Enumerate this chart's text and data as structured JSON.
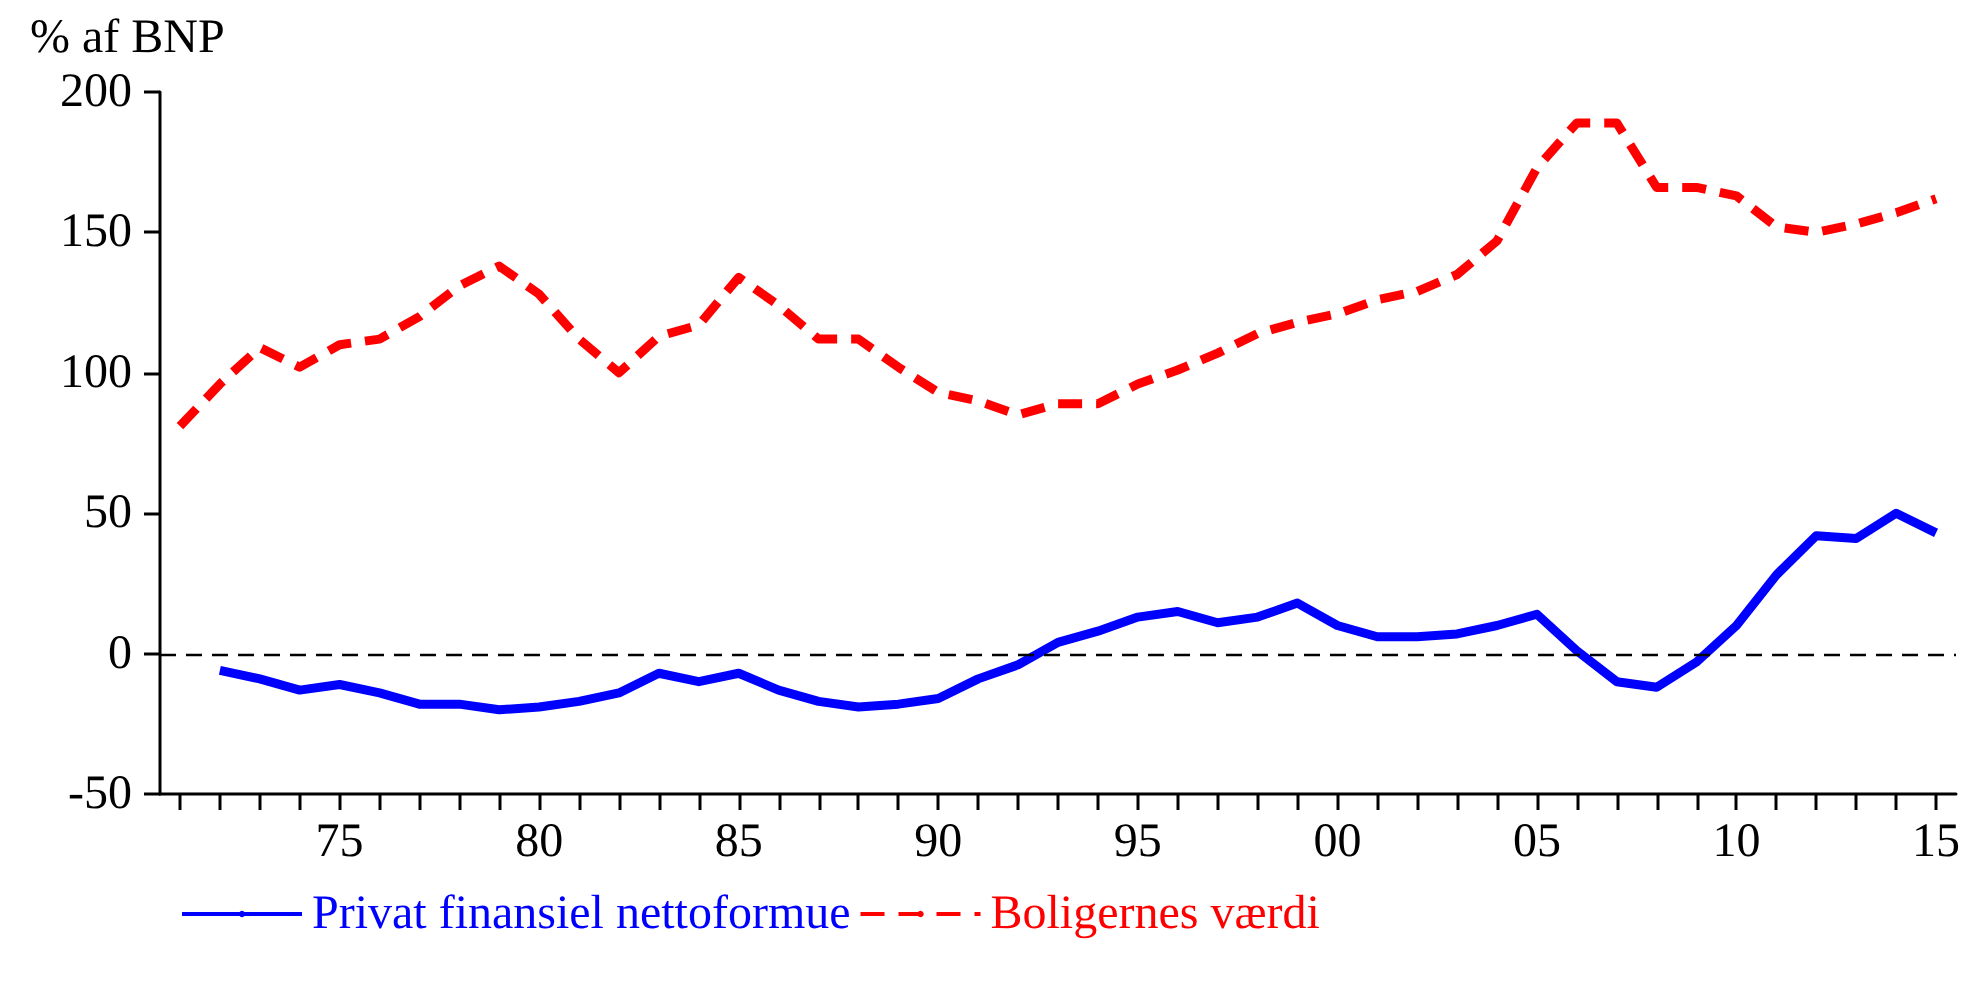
{
  "chart_data": {
    "type": "line",
    "ylabel": "% af BNP",
    "x": [
      1971,
      1972,
      1973,
      1974,
      1975,
      1976,
      1977,
      1978,
      1979,
      1980,
      1981,
      1982,
      1983,
      1984,
      1985,
      1986,
      1987,
      1988,
      1989,
      1990,
      1991,
      1992,
      1993,
      1994,
      1995,
      1996,
      1997,
      1998,
      1999,
      2000,
      2001,
      2002,
      2003,
      2004,
      2005,
      2006,
      2007,
      2008,
      2009,
      2010,
      2011,
      2012,
      2013,
      2014,
      2015
    ],
    "series": [
      {
        "name": "Privat finansiel nettoformue",
        "color": "#0000ff",
        "line_style": "solid",
        "values": [
          null,
          -6,
          -9,
          -13,
          -11,
          -14,
          -18,
          -18,
          -20,
          -19,
          -17,
          -14,
          -7,
          -10,
          -7,
          -13,
          -17,
          -19,
          -18,
          -16,
          -9,
          -4,
          4,
          8,
          13,
          15,
          11,
          13,
          18,
          10,
          6,
          6,
          7,
          10,
          14,
          1,
          -10,
          -12,
          -3,
          10,
          28,
          42,
          41,
          50,
          43
        ]
      },
      {
        "name": "Boligernes værdi",
        "color": "#ff0000",
        "line_style": "dashed",
        "values": [
          81,
          96,
          109,
          102,
          110,
          112,
          120,
          131,
          138,
          128,
          112,
          100,
          113,
          117,
          134,
          124,
          112,
          112,
          102,
          93,
          90,
          85,
          89,
          89,
          96,
          101,
          107,
          114,
          118,
          121,
          126,
          129,
          135,
          147,
          173,
          189,
          189,
          166,
          166,
          163,
          152,
          150,
          153,
          157,
          162
        ]
      }
    ],
    "xlim": [
      1970.5,
      2015.5
    ],
    "xticks": [
      {
        "value": 1971,
        "label": null
      },
      {
        "value": 1972,
        "label": null
      },
      {
        "value": 1973,
        "label": null
      },
      {
        "value": 1974,
        "label": null
      },
      {
        "value": 1975,
        "label": "75"
      },
      {
        "value": 1976,
        "label": null
      },
      {
        "value": 1977,
        "label": null
      },
      {
        "value": 1978,
        "label": null
      },
      {
        "value": 1979,
        "label": null
      },
      {
        "value": 1980,
        "label": "80"
      },
      {
        "value": 1981,
        "label": null
      },
      {
        "value": 1982,
        "label": null
      },
      {
        "value": 1983,
        "label": null
      },
      {
        "value": 1984,
        "label": null
      },
      {
        "value": 1985,
        "label": "85"
      },
      {
        "value": 1986,
        "label": null
      },
      {
        "value": 1987,
        "label": null
      },
      {
        "value": 1988,
        "label": null
      },
      {
        "value": 1989,
        "label": null
      },
      {
        "value": 1990,
        "label": "90"
      },
      {
        "value": 1991,
        "label": null
      },
      {
        "value": 1992,
        "label": null
      },
      {
        "value": 1993,
        "label": null
      },
      {
        "value": 1994,
        "label": null
      },
      {
        "value": 1995,
        "label": "95"
      },
      {
        "value": 1996,
        "label": null
      },
      {
        "value": 1997,
        "label": null
      },
      {
        "value": 1998,
        "label": null
      },
      {
        "value": 1999,
        "label": null
      },
      {
        "value": 2000,
        "label": "00"
      },
      {
        "value": 2001,
        "label": null
      },
      {
        "value": 2002,
        "label": null
      },
      {
        "value": 2003,
        "label": null
      },
      {
        "value": 2004,
        "label": null
      },
      {
        "value": 2005,
        "label": "05"
      },
      {
        "value": 2006,
        "label": null
      },
      {
        "value": 2007,
        "label": null
      },
      {
        "value": 2008,
        "label": null
      },
      {
        "value": 2009,
        "label": null
      },
      {
        "value": 2010,
        "label": "10"
      },
      {
        "value": 2011,
        "label": null
      },
      {
        "value": 2012,
        "label": null
      },
      {
        "value": 2013,
        "label": null
      },
      {
        "value": 2014,
        "label": null
      },
      {
        "value": 2015,
        "label": "15"
      }
    ],
    "ylim": [
      -50,
      200
    ],
    "yticks": [
      -50,
      0,
      50,
      100,
      150,
      200
    ],
    "ref_lines": [
      {
        "axis": "y",
        "value": 0,
        "label": null,
        "color": "#000000",
        "line_style": "dashed"
      }
    ],
    "grid": false,
    "legend": "bottom left",
    "marker": "none"
  }
}
